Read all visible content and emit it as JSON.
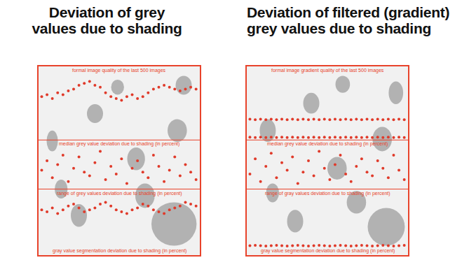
{
  "chart_data": [
    {
      "type": "scatter",
      "title": "Deviation of grey values due to shading",
      "x": [
        0,
        17,
        34,
        51,
        68,
        85,
        102,
        119,
        136,
        153,
        170,
        187,
        204,
        221,
        238,
        255,
        272,
        289,
        306,
        323,
        340,
        357,
        374,
        391,
        408,
        425,
        442,
        459,
        476,
        493
      ],
      "series": [
        {
          "color": "#e03a2a",
          "values": [
            84,
            85,
            83,
            86,
            85,
            87,
            88,
            90,
            91,
            92,
            90,
            89,
            86,
            84,
            83,
            82,
            84,
            85,
            83,
            84,
            86,
            88,
            89,
            90,
            89,
            88,
            87,
            88,
            89,
            88
          ]
        },
        {
          "color": "#e03a2a",
          "values": [
            45,
            50,
            41,
            48,
            53,
            39,
            46,
            52,
            44,
            42,
            49,
            55,
            40,
            47,
            43,
            51,
            38,
            46,
            50,
            44,
            41,
            53,
            47,
            39,
            45,
            52,
            42,
            48,
            44,
            40
          ]
        },
        {
          "color": "#e03a2a",
          "values": [
            24,
            23,
            25,
            22,
            24,
            26,
            27,
            25,
            23,
            24,
            25,
            27,
            28,
            26,
            24,
            23,
            22,
            24,
            25,
            27,
            26,
            24,
            23,
            22,
            24,
            25,
            26,
            28,
            27,
            26
          ]
        }
      ],
      "band_lines": [
        61,
        35
      ],
      "band_labels": [
        "formal image quality of the last 500 images",
        "median grey value deviation due to shading (in percent)",
        "range of grey values deviation due to shading (in percent)",
        "gray value segmentation deviation due to shading (in percent)"
      ],
      "xlim": [
        -10,
        505
      ],
      "ylim": [
        0,
        100
      ],
      "marker": "circle",
      "grid": false,
      "tick_labels": false
    },
    {
      "type": "scatter",
      "title": "Deviation of filtered (gradient) grey values due to shading",
      "x": [
        0,
        17,
        34,
        51,
        68,
        85,
        102,
        119,
        136,
        153,
        170,
        187,
        204,
        221,
        238,
        255,
        272,
        289,
        306,
        323,
        340,
        357,
        374,
        391,
        408,
        425,
        442,
        459,
        476,
        493
      ],
      "series": [
        {
          "color": "#e03a2a",
          "values": [
            72,
            71.8,
            72,
            71.8,
            72,
            71.8,
            72,
            71.8,
            72,
            71.8,
            72,
            71.8,
            72,
            71.8,
            72,
            71.8,
            72,
            71.8,
            72,
            71.8,
            72,
            71.8,
            72,
            71.8,
            72,
            71.8,
            72,
            71.8,
            72,
            71.8
          ]
        },
        {
          "color": "#e03a2a",
          "values": [
            62.5,
            62.3,
            62.5,
            62.3,
            62.5,
            62.3,
            62.5,
            62.3,
            62.5,
            62.3,
            62.5,
            62.3,
            62.5,
            62.3,
            62.5,
            62.3,
            62.5,
            62.3,
            62.5,
            62.3,
            62.5,
            62.3,
            62.5,
            62.3,
            62.5,
            62.3,
            62.5,
            62.3,
            62.5,
            62.3
          ]
        },
        {
          "color": "#e03a2a",
          "values": [
            43,
            51,
            39,
            47,
            54,
            41,
            49,
            45,
            52,
            38,
            44,
            50,
            42,
            55,
            46,
            40,
            48,
            53,
            43,
            39,
            47,
            51,
            44,
            42,
            50,
            46,
            41,
            53,
            45,
            40
          ]
        },
        {
          "color": "#e03a2a",
          "values": [
            5,
            5.2,
            5,
            4.8,
            5,
            5.2,
            5,
            4.8,
            5,
            5.2,
            5,
            4.8,
            5,
            5.2,
            5,
            4.8,
            5,
            5.2,
            5,
            4.8,
            5,
            5.2,
            5,
            4.8,
            5,
            5.2,
            5,
            4.8,
            5,
            5.2
          ]
        }
      ],
      "band_lines": [
        61,
        35
      ],
      "band_labels": [
        "formal image gradient quality of the last 500 images",
        "median grey value deviation due to shading (in percent)",
        "range of gray values deviation due to shading (in percent)",
        "gray value segmentation deviation due to shading (in percent)"
      ],
      "xlim": [
        -10,
        505
      ],
      "ylim": [
        0,
        100
      ],
      "marker": "circle",
      "grid": false,
      "tick_labels": false
    }
  ]
}
